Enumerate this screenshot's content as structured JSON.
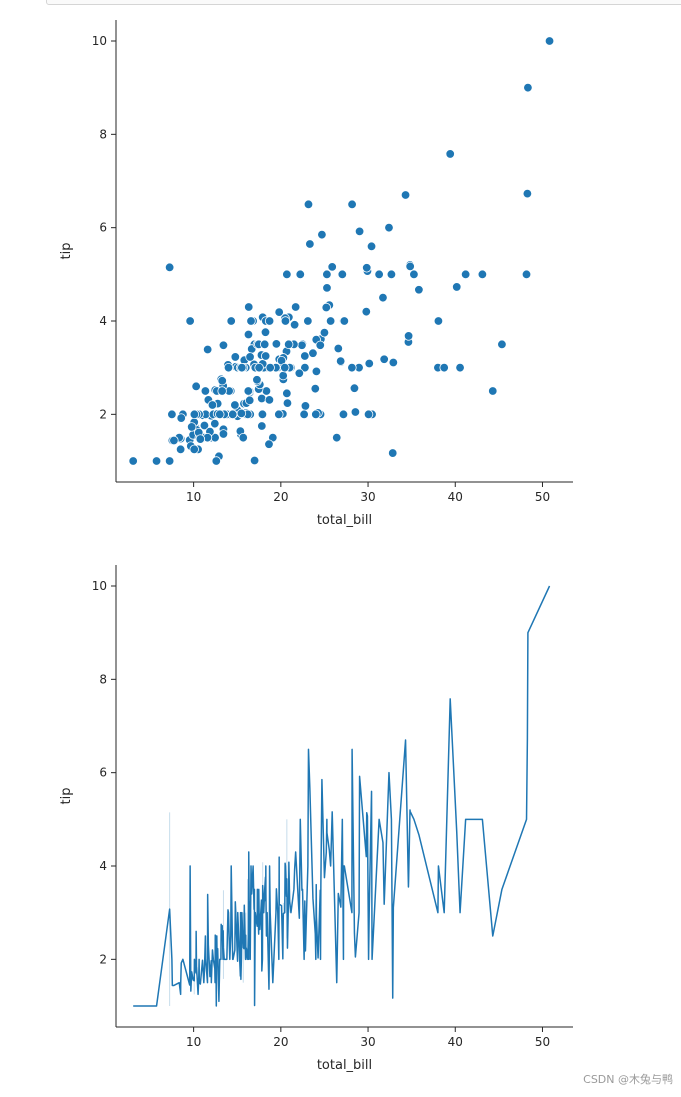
{
  "watermark": "CSDN @木兔与鸭",
  "chart_data": [
    {
      "type": "scatter",
      "xlabel": "total_bill",
      "ylabel": "tip",
      "xlim": [
        1.1,
        53.5
      ],
      "ylim": [
        0.55,
        10.45
      ],
      "xticks": [
        10,
        20,
        30,
        40,
        50
      ],
      "yticks": [
        2,
        4,
        6,
        8,
        10
      ],
      "grid": false,
      "color": "#1f77b4",
      "points": [
        [
          16.99,
          1.01
        ],
        [
          10.34,
          1.66
        ],
        [
          21.01,
          3.5
        ],
        [
          23.68,
          3.31
        ],
        [
          24.59,
          3.61
        ],
        [
          25.29,
          4.71
        ],
        [
          8.77,
          2.0
        ],
        [
          26.88,
          3.12
        ],
        [
          15.04,
          1.96
        ],
        [
          14.78,
          3.23
        ],
        [
          10.27,
          1.71
        ],
        [
          35.26,
          5.0
        ],
        [
          15.42,
          1.57
        ],
        [
          18.43,
          3.0
        ],
        [
          14.83,
          3.02
        ],
        [
          21.58,
          3.92
        ],
        [
          10.33,
          1.67
        ],
        [
          16.29,
          3.71
        ],
        [
          16.97,
          3.5
        ],
        [
          20.65,
          3.35
        ],
        [
          17.92,
          4.08
        ],
        [
          20.29,
          2.75
        ],
        [
          15.77,
          2.23
        ],
        [
          39.42,
          7.58
        ],
        [
          19.82,
          3.18
        ],
        [
          17.81,
          2.34
        ],
        [
          13.37,
          2.0
        ],
        [
          12.69,
          2.0
        ],
        [
          21.7,
          4.3
        ],
        [
          19.65,
          3.0
        ],
        [
          9.55,
          1.45
        ],
        [
          18.35,
          2.5
        ],
        [
          15.06,
          3.0
        ],
        [
          20.69,
          2.45
        ],
        [
          17.78,
          3.27
        ],
        [
          24.06,
          3.6
        ],
        [
          16.31,
          2.0
        ],
        [
          16.93,
          3.07
        ],
        [
          18.69,
          2.31
        ],
        [
          31.27,
          5.0
        ],
        [
          16.04,
          2.24
        ],
        [
          17.46,
          2.54
        ],
        [
          13.94,
          3.06
        ],
        [
          9.68,
          1.32
        ],
        [
          30.4,
          5.6
        ],
        [
          18.29,
          3.0
        ],
        [
          22.23,
          5.0
        ],
        [
          32.4,
          6.0
        ],
        [
          28.55,
          2.05
        ],
        [
          18.04,
          3.0
        ],
        [
          12.54,
          2.5
        ],
        [
          10.29,
          2.6
        ],
        [
          34.81,
          5.2
        ],
        [
          9.94,
          1.56
        ],
        [
          25.56,
          4.34
        ],
        [
          19.49,
          3.51
        ],
        [
          38.01,
          3.0
        ],
        [
          26.41,
          1.5
        ],
        [
          11.24,
          1.76
        ],
        [
          48.27,
          6.73
        ],
        [
          20.29,
          3.21
        ],
        [
          13.81,
          2.0
        ],
        [
          11.02,
          1.98
        ],
        [
          18.29,
          3.76
        ],
        [
          17.59,
          2.64
        ],
        [
          20.08,
          3.15
        ],
        [
          16.45,
          2.47
        ],
        [
          3.07,
          1.0
        ],
        [
          20.23,
          2.01
        ],
        [
          15.01,
          2.09
        ],
        [
          12.02,
          1.97
        ],
        [
          17.07,
          3.0
        ],
        [
          26.86,
          3.14
        ],
        [
          25.28,
          5.0
        ],
        [
          14.73,
          2.2
        ],
        [
          10.51,
          1.25
        ],
        [
          17.92,
          3.08
        ],
        [
          27.2,
          4.0
        ],
        [
          22.76,
          3.0
        ],
        [
          17.29,
          2.71
        ],
        [
          19.44,
          3.0
        ],
        [
          16.66,
          3.4
        ],
        [
          10.07,
          1.83
        ],
        [
          32.68,
          5.0
        ],
        [
          15.98,
          2.03
        ],
        [
          34.83,
          5.17
        ],
        [
          13.03,
          2.0
        ],
        [
          18.28,
          4.0
        ],
        [
          24.71,
          5.85
        ],
        [
          21.16,
          3.0
        ],
        [
          28.97,
          3.0
        ],
        [
          22.49,
          3.5
        ],
        [
          5.75,
          1.0
        ],
        [
          16.32,
          4.3
        ],
        [
          22.75,
          3.25
        ],
        [
          40.17,
          4.73
        ],
        [
          27.28,
          4.0
        ],
        [
          12.03,
          1.5
        ],
        [
          21.01,
          3.0
        ],
        [
          12.46,
          1.5
        ],
        [
          11.35,
          2.5
        ],
        [
          15.38,
          3.0
        ],
        [
          44.3,
          2.5
        ],
        [
          22.42,
          3.48
        ],
        [
          20.92,
          4.08
        ],
        [
          15.36,
          1.64
        ],
        [
          20.49,
          4.06
        ],
        [
          25.21,
          4.29
        ],
        [
          18.24,
          3.76
        ],
        [
          14.31,
          4.0
        ],
        [
          14.0,
          3.0
        ],
        [
          7.25,
          1.0
        ],
        [
          38.07,
          4.0
        ],
        [
          23.95,
          2.55
        ],
        [
          25.71,
          4.0
        ],
        [
          17.31,
          3.5
        ],
        [
          29.93,
          5.07
        ],
        [
          10.65,
          1.5
        ],
        [
          12.43,
          1.8
        ],
        [
          24.08,
          2.92
        ],
        [
          11.69,
          2.31
        ],
        [
          13.42,
          1.68
        ],
        [
          14.26,
          2.5
        ],
        [
          15.95,
          2.0
        ],
        [
          12.48,
          2.52
        ],
        [
          29.8,
          4.2
        ],
        [
          8.52,
          1.48
        ],
        [
          14.52,
          2.0
        ],
        [
          11.38,
          2.0
        ],
        [
          22.82,
          2.18
        ],
        [
          19.08,
          1.5
        ],
        [
          20.27,
          2.83
        ],
        [
          11.17,
          1.5
        ],
        [
          12.26,
          2.0
        ],
        [
          18.26,
          3.25
        ],
        [
          8.51,
          1.25
        ],
        [
          10.33,
          2.0
        ],
        [
          14.15,
          2.0
        ],
        [
          16.0,
          2.0
        ],
        [
          13.16,
          2.75
        ],
        [
          17.47,
          3.5
        ],
        [
          34.3,
          6.7
        ],
        [
          41.19,
          5.0
        ],
        [
          27.05,
          5.0
        ],
        [
          16.43,
          2.3
        ],
        [
          8.35,
          1.5
        ],
        [
          18.64,
          1.36
        ],
        [
          11.87,
          1.63
        ],
        [
          9.78,
          1.73
        ],
        [
          7.51,
          2.0
        ],
        [
          14.07,
          2.5
        ],
        [
          13.13,
          2.0
        ],
        [
          17.26,
          2.74
        ],
        [
          24.55,
          2.0
        ],
        [
          19.77,
          2.0
        ],
        [
          29.85,
          5.14
        ],
        [
          48.17,
          5.0
        ],
        [
          25.0,
          3.75
        ],
        [
          13.39,
          2.61
        ],
        [
          16.49,
          2.0
        ],
        [
          21.5,
          3.5
        ],
        [
          12.66,
          2.5
        ],
        [
          16.21,
          2.0
        ],
        [
          13.81,
          2.0
        ],
        [
          17.51,
          3.0
        ],
        [
          24.52,
          3.48
        ],
        [
          20.76,
          2.24
        ],
        [
          31.71,
          4.5
        ],
        [
          10.59,
          1.61
        ],
        [
          10.63,
          2.0
        ],
        [
          50.81,
          10.0
        ],
        [
          15.81,
          3.16
        ],
        [
          7.25,
          5.15
        ],
        [
          31.85,
          3.18
        ],
        [
          16.82,
          4.0
        ],
        [
          32.9,
          3.11
        ],
        [
          17.89,
          2.0
        ],
        [
          14.48,
          2.0
        ],
        [
          9.6,
          4.0
        ],
        [
          34.63,
          3.55
        ],
        [
          34.65,
          3.68
        ],
        [
          23.33,
          5.65
        ],
        [
          45.35,
          3.5
        ],
        [
          23.17,
          6.5
        ],
        [
          40.55,
          3.0
        ],
        [
          20.69,
          5.0
        ],
        [
          20.9,
          3.5
        ],
        [
          30.46,
          2.0
        ],
        [
          18.15,
          3.5
        ],
        [
          23.1,
          4.0
        ],
        [
          15.69,
          1.5
        ],
        [
          19.81,
          4.19
        ],
        [
          28.44,
          2.56
        ],
        [
          15.48,
          2.02
        ],
        [
          16.58,
          4.0
        ],
        [
          7.56,
          1.44
        ],
        [
          10.34,
          2.0
        ],
        [
          43.11,
          5.0
        ],
        [
          13.0,
          2.0
        ],
        [
          13.51,
          2.0
        ],
        [
          18.71,
          4.0
        ],
        [
          12.74,
          2.01
        ],
        [
          13.0,
          2.0
        ],
        [
          16.4,
          2.5
        ],
        [
          20.53,
          4.0
        ],
        [
          16.47,
          3.23
        ],
        [
          26.59,
          3.41
        ],
        [
          38.73,
          3.0
        ],
        [
          24.27,
          2.03
        ],
        [
          12.76,
          2.23
        ],
        [
          30.06,
          2.0
        ],
        [
          25.89,
          5.16
        ],
        [
          48.33,
          9.0
        ],
        [
          13.27,
          2.5
        ],
        [
          28.17,
          6.5
        ],
        [
          12.9,
          1.1
        ],
        [
          28.15,
          3.0
        ],
        [
          11.59,
          1.5
        ],
        [
          7.74,
          1.44
        ],
        [
          30.14,
          3.09
        ],
        [
          12.16,
          2.2
        ],
        [
          13.42,
          3.48
        ],
        [
          8.58,
          1.92
        ],
        [
          15.98,
          3.0
        ],
        [
          13.42,
          1.58
        ],
        [
          16.27,
          2.5
        ],
        [
          10.09,
          2.0
        ],
        [
          20.45,
          3.0
        ],
        [
          13.28,
          2.72
        ],
        [
          22.12,
          2.88
        ],
        [
          24.01,
          2.0
        ],
        [
          15.69,
          3.0
        ],
        [
          11.61,
          3.39
        ],
        [
          10.77,
          1.47
        ],
        [
          15.53,
          3.0
        ],
        [
          10.07,
          1.25
        ],
        [
          12.6,
          1.0
        ],
        [
          32.83,
          1.17
        ],
        [
          35.83,
          4.67
        ],
        [
          29.03,
          5.92
        ],
        [
          27.18,
          2.0
        ],
        [
          22.67,
          2.0
        ],
        [
          17.82,
          1.75
        ],
        [
          18.78,
          3.0
        ]
      ]
    },
    {
      "type": "line",
      "xlabel": "total_bill",
      "ylabel": "tip",
      "xlim": [
        1.1,
        53.5
      ],
      "ylim": [
        0.55,
        10.45
      ],
      "xticks": [
        10,
        20,
        30,
        40,
        50
      ],
      "yticks": [
        2,
        4,
        6,
        8,
        10
      ],
      "grid": false,
      "color": "#1f77b4",
      "source": "same points as scatter, sorted by total_bill"
    }
  ]
}
